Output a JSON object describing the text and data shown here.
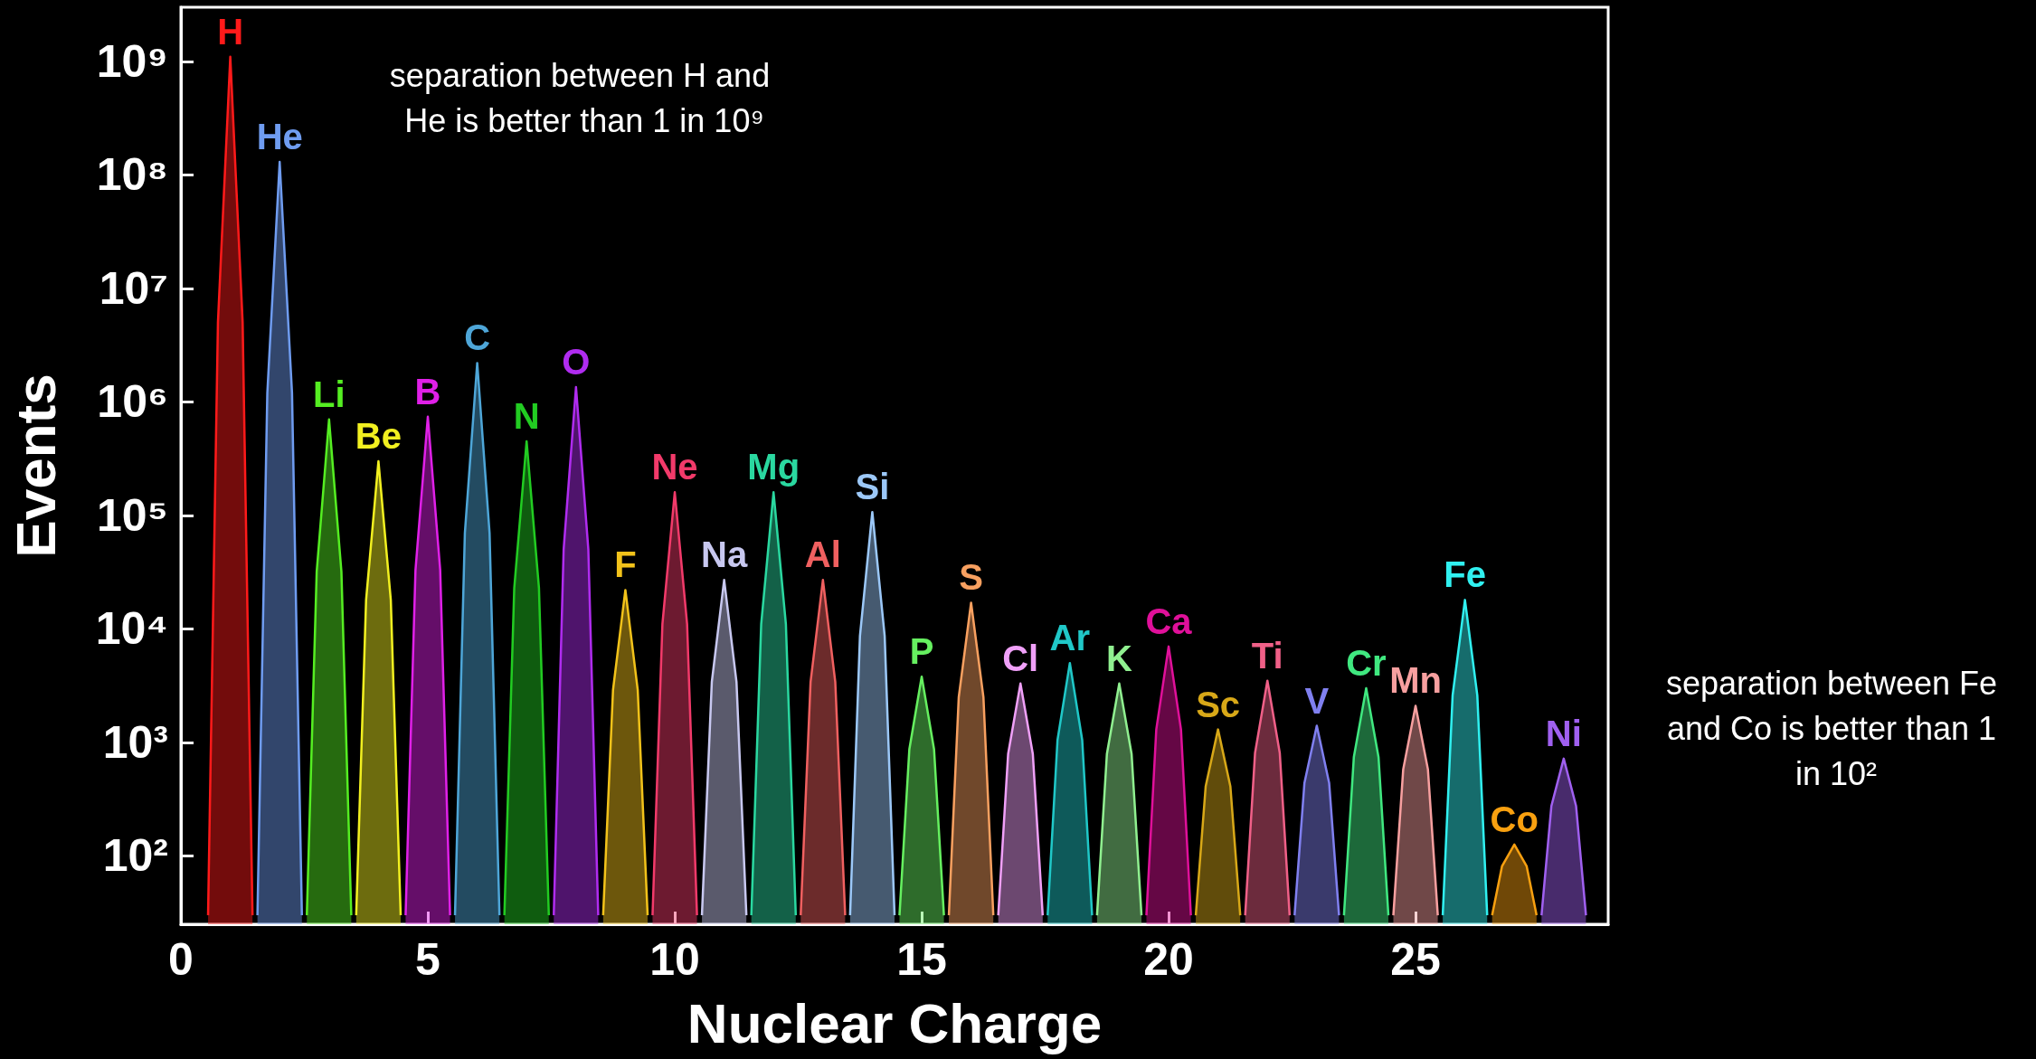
{
  "chart_data": {
    "type": "area",
    "xlabel": "Nuclear Charge",
    "ylabel": "Events",
    "log": "y",
    "grid": false,
    "marker": "none",
    "xlim": [
      0,
      28.9
    ],
    "xticks": [
      0,
      5,
      10,
      15,
      20,
      25
    ],
    "ylim": [
      25,
      3000000000
    ],
    "yticks": [
      {
        "value": 100,
        "label": "10²"
      },
      {
        "value": 1000,
        "label": "10³"
      },
      {
        "value": 10000,
        "label": "10⁴"
      },
      {
        "value": 100000,
        "label": "10⁵"
      },
      {
        "value": 1000000,
        "label": "10⁶"
      },
      {
        "value": 10000000,
        "label": "10⁷"
      },
      {
        "value": 100000000,
        "label": "10⁸"
      },
      {
        "value": 1000000000,
        "label": "10⁹"
      }
    ],
    "annotations": [
      "separation between H and He is better than 1 in 10⁹",
      "separation between Fe and Co is better than 1 in 10²"
    ],
    "series": [
      {
        "name": "H",
        "color": "#ff1a1a",
        "x": [
          0.55,
          0.75,
          1,
          1.25,
          1.45
        ],
        "values": [
          30,
          5000000,
          1100000000,
          5000000,
          30
        ]
      },
      {
        "name": "He",
        "color": "#6f9cf0",
        "x": [
          1.55,
          1.75,
          2,
          2.25,
          2.45
        ],
        "values": [
          30,
          1200000,
          130000000,
          1200000,
          30
        ]
      },
      {
        "name": "Li",
        "color": "#55ee22",
        "x": [
          2.55,
          2.75,
          3,
          3.25,
          3.45
        ],
        "values": [
          30,
          32000,
          700000,
          32000,
          30
        ]
      },
      {
        "name": "Be",
        "color": "#f2f020",
        "x": [
          3.55,
          3.75,
          4,
          4.25,
          4.45
        ],
        "values": [
          30,
          18000,
          300000,
          18000,
          30
        ]
      },
      {
        "name": "B",
        "color": "#e020e8",
        "x": [
          4.55,
          4.75,
          5,
          5.25,
          5.45
        ],
        "values": [
          30,
          33000,
          740000,
          33000,
          30
        ]
      },
      {
        "name": "C",
        "color": "#4ea6d8",
        "x": [
          5.55,
          5.75,
          6,
          6.25,
          6.45
        ],
        "values": [
          30,
          70000,
          2200000,
          70000,
          30
        ]
      },
      {
        "name": "N",
        "color": "#22cc22",
        "x": [
          6.55,
          6.75,
          7,
          7.25,
          7.45
        ],
        "values": [
          30,
          23000,
          450000,
          23000,
          30
        ]
      },
      {
        "name": "O",
        "color": "#b02cf0",
        "x": [
          7.55,
          7.75,
          8,
          8.25,
          8.45
        ],
        "values": [
          30,
          50000,
          1350000,
          50000,
          30
        ]
      },
      {
        "name": "F",
        "color": "#f2c21a",
        "x": [
          8.55,
          8.75,
          9,
          9.25,
          9.45
        ],
        "values": [
          30,
          2900,
          22000,
          2900,
          30
        ]
      },
      {
        "name": "Ne",
        "color": "#f23a6a",
        "x": [
          9.55,
          9.75,
          10,
          10.25,
          10.45
        ],
        "values": [
          30,
          11000,
          160000,
          11000,
          30
        ]
      },
      {
        "name": "Na",
        "color": "#c8c8f0",
        "x": [
          10.55,
          10.75,
          11,
          11.25,
          11.45
        ],
        "values": [
          30,
          3400,
          27000,
          3400,
          30
        ]
      },
      {
        "name": "Mg",
        "color": "#2ad8a0",
        "x": [
          11.55,
          11.75,
          12,
          12.25,
          12.45
        ],
        "values": [
          30,
          11000,
          160000,
          11000,
          30
        ]
      },
      {
        "name": "Al",
        "color": "#f06060",
        "x": [
          12.55,
          12.75,
          13,
          13.25,
          13.45
        ],
        "values": [
          30,
          3400,
          27000,
          3400,
          30
        ]
      },
      {
        "name": "Si",
        "color": "#9cc8f8",
        "x": [
          13.55,
          13.75,
          14,
          14.25,
          14.45
        ],
        "values": [
          30,
          8700,
          107000,
          8700,
          30
        ]
      },
      {
        "name": "P",
        "color": "#66f060",
        "x": [
          14.55,
          14.75,
          15,
          15.25,
          15.45
        ],
        "values": [
          30,
          870,
          3800,
          870,
          30
        ]
      },
      {
        "name": "S",
        "color": "#f8a060",
        "x": [
          15.55,
          15.75,
          16,
          16.25,
          16.45
        ],
        "values": [
          30,
          2500,
          17000,
          2500,
          30
        ]
      },
      {
        "name": "Cl",
        "color": "#f0a0f8",
        "x": [
          16.55,
          16.75,
          17,
          17.25,
          17.45
        ],
        "values": [
          30,
          790,
          3300,
          790,
          30
        ]
      },
      {
        "name": "Ar",
        "color": "#20c8c8",
        "x": [
          17.55,
          17.75,
          18,
          18.25,
          18.45
        ],
        "values": [
          30,
          1050,
          5000,
          1050,
          30
        ]
      },
      {
        "name": "K",
        "color": "#90f090",
        "x": [
          18.55,
          18.75,
          19,
          19.25,
          19.45
        ],
        "values": [
          30,
          790,
          3300,
          790,
          30
        ]
      },
      {
        "name": "Ca",
        "color": "#e0109a",
        "x": [
          19.55,
          19.75,
          20,
          20.25,
          20.45
        ],
        "values": [
          30,
          1300,
          7000,
          1300,
          30
        ]
      },
      {
        "name": "Sc",
        "color": "#d8a818",
        "x": [
          20.55,
          20.75,
          21,
          21.25,
          21.45
        ],
        "values": [
          30,
          410,
          1300,
          410,
          30
        ]
      },
      {
        "name": "Ti",
        "color": "#f06088",
        "x": [
          21.55,
          21.75,
          22,
          22.25,
          22.45
        ],
        "values": [
          30,
          810,
          3500,
          810,
          30
        ]
      },
      {
        "name": "V",
        "color": "#8080f0",
        "x": [
          22.55,
          22.75,
          23,
          23.25,
          23.45
        ],
        "values": [
          30,
          440,
          1400,
          440,
          30
        ]
      },
      {
        "name": "Cr",
        "color": "#40e880",
        "x": [
          23.55,
          23.75,
          24,
          24.25,
          24.45
        ],
        "values": [
          30,
          740,
          3000,
          740,
          30
        ]
      },
      {
        "name": "Mn",
        "color": "#f8a0a0",
        "x": [
          24.55,
          24.75,
          25,
          25.25,
          25.45
        ],
        "values": [
          30,
          580,
          2100,
          580,
          30
        ]
      },
      {
        "name": "Fe",
        "color": "#30f0f0",
        "x": [
          25.55,
          25.75,
          26,
          26.25,
          26.45
        ],
        "values": [
          30,
          2600,
          18000,
          2600,
          30
        ]
      },
      {
        "name": "Co",
        "color": "#f8a010",
        "x": [
          26.55,
          26.75,
          27,
          27.25,
          27.45
        ],
        "values": [
          30,
          81,
          126,
          81,
          30
        ]
      },
      {
        "name": "Ni",
        "color": "#a060f0",
        "x": [
          27.55,
          27.75,
          28,
          28.25,
          28.45
        ],
        "values": [
          30,
          275,
          720,
          275,
          30
        ]
      }
    ]
  }
}
